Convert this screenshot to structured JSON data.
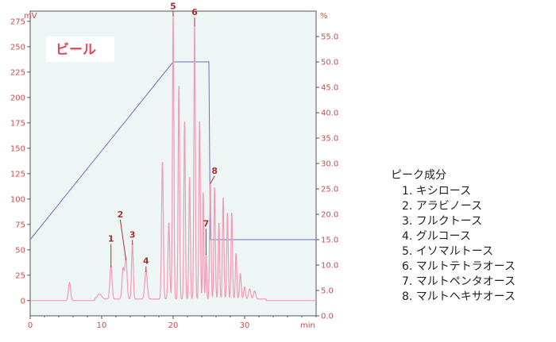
{
  "chart_data": {
    "type": "line",
    "sample_label": "ビール",
    "xunit": "min",
    "y_left_unit": "mV",
    "y_right_unit": "%",
    "xlim": [
      0,
      40
    ],
    "xticks": [
      0,
      10,
      20,
      30
    ],
    "y_left_lim": [
      -15,
      285
    ],
    "y_left_ticks": [
      0,
      25,
      50,
      75,
      100,
      125,
      150,
      175,
      200,
      225,
      250,
      275
    ],
    "y_right_lim": [
      0,
      60
    ],
    "y_right_ticks": [
      "0.0",
      "5.0",
      "10.0",
      "15.0",
      "20.0",
      "25.0",
      "30.0",
      "35.0",
      "40.0",
      "45.0",
      "50.0",
      "55.0"
    ],
    "series": [
      {
        "baseline": 0,
        "peaks": [
          [
            5.5,
            18,
            0.15
          ],
          [
            9.7,
            5,
            0.3
          ],
          [
            11.3,
            33,
            0.15
          ],
          [
            13.0,
            30,
            0.15
          ],
          [
            13.4,
            40,
            0.15
          ],
          [
            14.3,
            55,
            0.12
          ],
          [
            16.2,
            28,
            0.17
          ],
          [
            18.5,
            135,
            0.12
          ],
          [
            19.4,
            75,
            0.12
          ],
          [
            20.0,
            280,
            0.1
          ],
          [
            20.8,
            210,
            0.1
          ],
          [
            21.6,
            175,
            0.1
          ],
          [
            22.3,
            120,
            0.1
          ],
          [
            23.0,
            270,
            0.1
          ],
          [
            23.7,
            175,
            0.1
          ],
          [
            24.2,
            105,
            0.08
          ],
          [
            24.6,
            45,
            0.08
          ],
          [
            25.2,
            115,
            0.1
          ],
          [
            25.8,
            110,
            0.1
          ],
          [
            26.4,
            75,
            0.1
          ],
          [
            27.0,
            100,
            0.1
          ],
          [
            27.6,
            85,
            0.1
          ],
          [
            28.2,
            85,
            0.1
          ],
          [
            28.8,
            45,
            0.1
          ],
          [
            29.4,
            25,
            0.12
          ],
          [
            30.0,
            12,
            0.12
          ],
          [
            30.7,
            10,
            0.15
          ],
          [
            31.4,
            8,
            0.15
          ]
        ]
      },
      {
        "points": [
          [
            0,
            15
          ],
          [
            20,
            50
          ],
          [
            25,
            50
          ],
          [
            25.2,
            15
          ],
          [
            40,
            15
          ]
        ]
      }
    ],
    "peak_labels": [
      {
        "text": "1",
        "x": 11.3,
        "y": 33,
        "lx": 11.3,
        "ly": 58
      },
      {
        "text": "2",
        "x": 13.4,
        "y": 40,
        "lx": 12.6,
        "ly": 82
      },
      {
        "text": "3",
        "x": 14.3,
        "y": 55,
        "lx": 14.3,
        "ly": 62
      },
      {
        "text": "4",
        "x": 16.2,
        "y": 28,
        "lx": 16.2,
        "ly": 36
      },
      {
        "text": "5",
        "x": 20.0,
        "y": 280,
        "lx": 20.0,
        "ly": 287
      },
      {
        "text": "6",
        "x": 23.0,
        "y": 270,
        "lx": 23.0,
        "ly": 281
      },
      {
        "text": "7",
        "x": 24.6,
        "y": 45,
        "lx": 24.6,
        "ly": 73
      },
      {
        "text": "8",
        "x": 25.2,
        "y": 115,
        "lx": 25.8,
        "ly": 125
      }
    ]
  },
  "legend": {
    "title": "ピーク成分",
    "items": [
      "1. キシロース",
      "2. アラビノース",
      "3. フルクトース",
      "4. グルコース",
      "5. イソマルトース",
      "6. マルトテトラオース",
      "7. マルトペンタオース",
      "8. マルトヘキサオース"
    ]
  },
  "colors": {
    "plot_bg": "#edf5f5",
    "axis": "#555555",
    "tick_text": "#c0504d",
    "signal": "#f29ab5",
    "gradient": "#7070b8",
    "peak_label": "#a83232",
    "sample_label": "#e0475a"
  }
}
